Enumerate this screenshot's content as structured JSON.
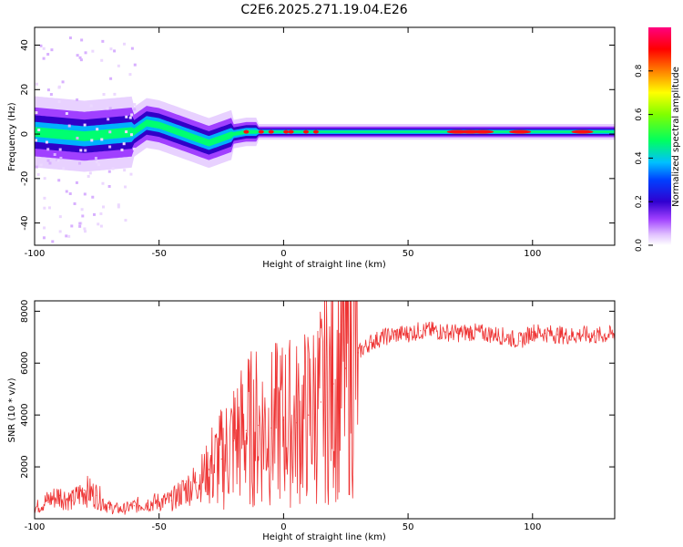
{
  "title": "C2E6.2025.271.19.04.E26",
  "chart_data": [
    {
      "type": "heatmap",
      "name": "spectrogram",
      "xlabel": "Height of straight line (km)",
      "ylabel": "Frequency (Hz)",
      "xlim": [
        -100,
        133
      ],
      "ylim": [
        -50,
        48
      ],
      "xticks": [
        -100,
        -50,
        0,
        50,
        100
      ],
      "yticks": [
        -40,
        -20,
        0,
        20,
        40
      ],
      "colorbar": {
        "label": "Normalized spectral amplitude",
        "range": [
          0,
          1
        ],
        "ticks": [
          0.0,
          0.2,
          0.4,
          0.6,
          0.8
        ],
        "tick_labels": [
          "0.0",
          "0.2",
          "0.4",
          "0.6",
          "0.8"
        ],
        "colormap": [
          "#ffffff",
          "#c080ff",
          "#4000c0",
          "#0000ff",
          "#00c0ff",
          "#00ff60",
          "#c0ff00",
          "#ff8000",
          "#ff0000",
          "#ff0080"
        ]
      },
      "ridge": {
        "description": "dominant frequency band",
        "x": [
          -100,
          -90,
          -80,
          -70,
          -60,
          -55,
          -50,
          -45,
          -40,
          -35,
          -30,
          -25,
          -20,
          -15,
          0,
          20,
          40,
          60,
          80,
          100,
          133
        ],
        "y": [
          1,
          0,
          -1,
          0,
          1,
          5,
          4,
          2,
          0,
          -2,
          -4,
          -2,
          0,
          1,
          1,
          1,
          1,
          1,
          1,
          1,
          1
        ]
      }
    },
    {
      "type": "line",
      "name": "snr",
      "color": "#ee3333",
      "xlabel": "Height of straight line (km)",
      "ylabel": "SNR (10 * v/v)",
      "xlim": [
        -100,
        133
      ],
      "ylim": [
        0,
        8400
      ],
      "xticks": [
        -100,
        -50,
        0,
        50,
        100
      ],
      "yticks": [
        2000,
        4000,
        6000,
        8000
      ],
      "x": [
        -100,
        -95,
        -90,
        -85,
        -80,
        -75,
        -70,
        -65,
        -60,
        -55,
        -50,
        -45,
        -40,
        -35,
        -30,
        -25,
        -20,
        -15,
        -10,
        -5,
        0,
        5,
        10,
        15,
        20,
        25,
        30,
        35,
        40,
        45,
        50,
        55,
        60,
        65,
        70,
        75,
        80,
        85,
        90,
        95,
        100,
        105,
        110,
        115,
        120,
        125,
        133
      ],
      "y": [
        400,
        700,
        900,
        700,
        1100,
        900,
        450,
        350,
        500,
        600,
        650,
        700,
        1100,
        1400,
        1900,
        2300,
        3000,
        3400,
        3600,
        3500,
        3800,
        3700,
        4000,
        4500,
        5200,
        5800,
        6400,
        6800,
        7000,
        7100,
        7150,
        7250,
        7250,
        7200,
        7150,
        7200,
        7150,
        7100,
        7000,
        6850,
        7200,
        7150,
        7100,
        7050,
        7100,
        7050,
        7100
      ]
    }
  ]
}
